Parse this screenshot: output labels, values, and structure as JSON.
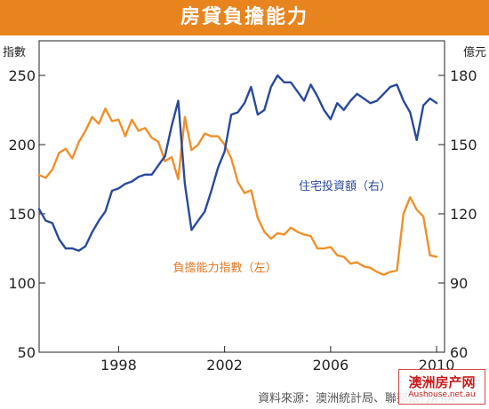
{
  "header": {
    "title": "房貸負擔能力"
  },
  "chart_data": {
    "type": "line",
    "left_axis": {
      "unit": "指數",
      "min": 50,
      "max": 275,
      "ticks": [
        50,
        100,
        150,
        200,
        250
      ]
    },
    "right_axis": {
      "unit": "億元",
      "min": 60,
      "max": 195,
      "ticks": [
        60,
        90,
        120,
        150,
        180
      ]
    },
    "x_axis": {
      "min": 1995.0,
      "max": 2010.3,
      "ticks": [
        1998,
        2002,
        2006,
        2010
      ]
    },
    "series": [
      {
        "name": "負擔能力指數（左）",
        "axis": "left",
        "color": "#f0902a",
        "x": [
          1995.0,
          1995.25,
          1995.5,
          1995.75,
          1996.0,
          1996.25,
          1996.5,
          1996.75,
          1997.0,
          1997.25,
          1997.5,
          1997.75,
          1998.0,
          1998.25,
          1998.5,
          1998.75,
          1999.0,
          1999.25,
          1999.5,
          1999.75,
          2000.0,
          2000.25,
          2000.5,
          2000.75,
          2001.0,
          2001.25,
          2001.5,
          2001.75,
          2002.0,
          2002.25,
          2002.5,
          2002.75,
          2003.0,
          2003.25,
          2003.5,
          2003.75,
          2004.0,
          2004.25,
          2004.5,
          2004.75,
          2005.0,
          2005.25,
          2005.5,
          2005.75,
          2006.0,
          2006.25,
          2006.5,
          2006.75,
          2007.0,
          2007.25,
          2007.5,
          2007.75,
          2008.0,
          2008.25,
          2008.5,
          2008.75,
          2009.0,
          2009.25,
          2009.5,
          2009.75,
          2010.0
        ],
        "values": [
          178,
          176,
          182,
          194,
          197,
          190,
          202,
          210,
          220,
          215,
          226,
          217,
          218,
          206,
          218,
          210,
          212,
          205,
          202,
          188,
          191,
          175,
          220,
          196,
          200,
          208,
          206,
          206,
          200,
          190,
          173,
          165,
          167,
          147,
          137,
          132,
          136,
          135,
          140,
          137,
          135,
          134,
          125,
          125,
          126,
          120,
          119,
          114,
          115,
          112,
          111,
          108,
          106,
          108,
          109,
          150,
          162,
          153,
          148,
          120,
          119
        ]
      },
      {
        "name": "住宅投資額（右）",
        "axis": "right",
        "color": "#2a4a9c",
        "x": [
          1995.0,
          1995.25,
          1995.5,
          1995.75,
          1996.0,
          1996.25,
          1996.5,
          1996.75,
          1997.0,
          1997.25,
          1997.5,
          1997.75,
          1998.0,
          1998.25,
          1998.5,
          1998.75,
          1999.0,
          1999.25,
          1999.5,
          1999.75,
          2000.0,
          2000.25,
          2000.5,
          2000.75,
          2001.0,
          2001.25,
          2001.5,
          2001.75,
          2002.0,
          2002.25,
          2002.5,
          2002.75,
          2003.0,
          2003.25,
          2003.5,
          2003.75,
          2004.0,
          2004.25,
          2004.5,
          2004.75,
          2005.0,
          2005.25,
          2005.5,
          2005.75,
          2006.0,
          2006.25,
          2006.5,
          2006.75,
          2007.0,
          2007.25,
          2007.5,
          2007.75,
          2008.0,
          2008.25,
          2008.5,
          2008.75,
          2009.0,
          2009.25,
          2009.5,
          2009.75,
          2010.0
        ],
        "values": [
          122,
          117,
          116,
          109,
          105,
          105,
          104,
          106,
          112,
          117,
          121,
          130,
          131,
          133,
          134,
          136,
          137,
          137,
          141,
          145,
          158,
          169,
          133,
          113,
          117,
          121,
          130,
          140,
          147,
          163,
          164,
          168,
          175,
          163,
          165,
          175,
          180,
          177,
          177,
          173,
          169,
          176,
          171,
          165,
          161,
          168,
          165,
          169,
          172,
          170,
          168,
          169,
          172,
          175,
          176,
          169,
          164,
          152,
          167,
          170,
          168
        ]
      }
    ],
    "annotations": [
      {
        "text": "住宅投資額（右）",
        "color": "#2a4a9c"
      },
      {
        "text": "負擔能力指數（左）",
        "color": "#e07820"
      }
    ],
    "grid": false
  },
  "footer": {
    "source": "資料來源：澳洲統計局、聯邦銀行/HIA"
  },
  "watermark": {
    "title": "澳洲房产网",
    "url": "Aushouse.net.au"
  }
}
